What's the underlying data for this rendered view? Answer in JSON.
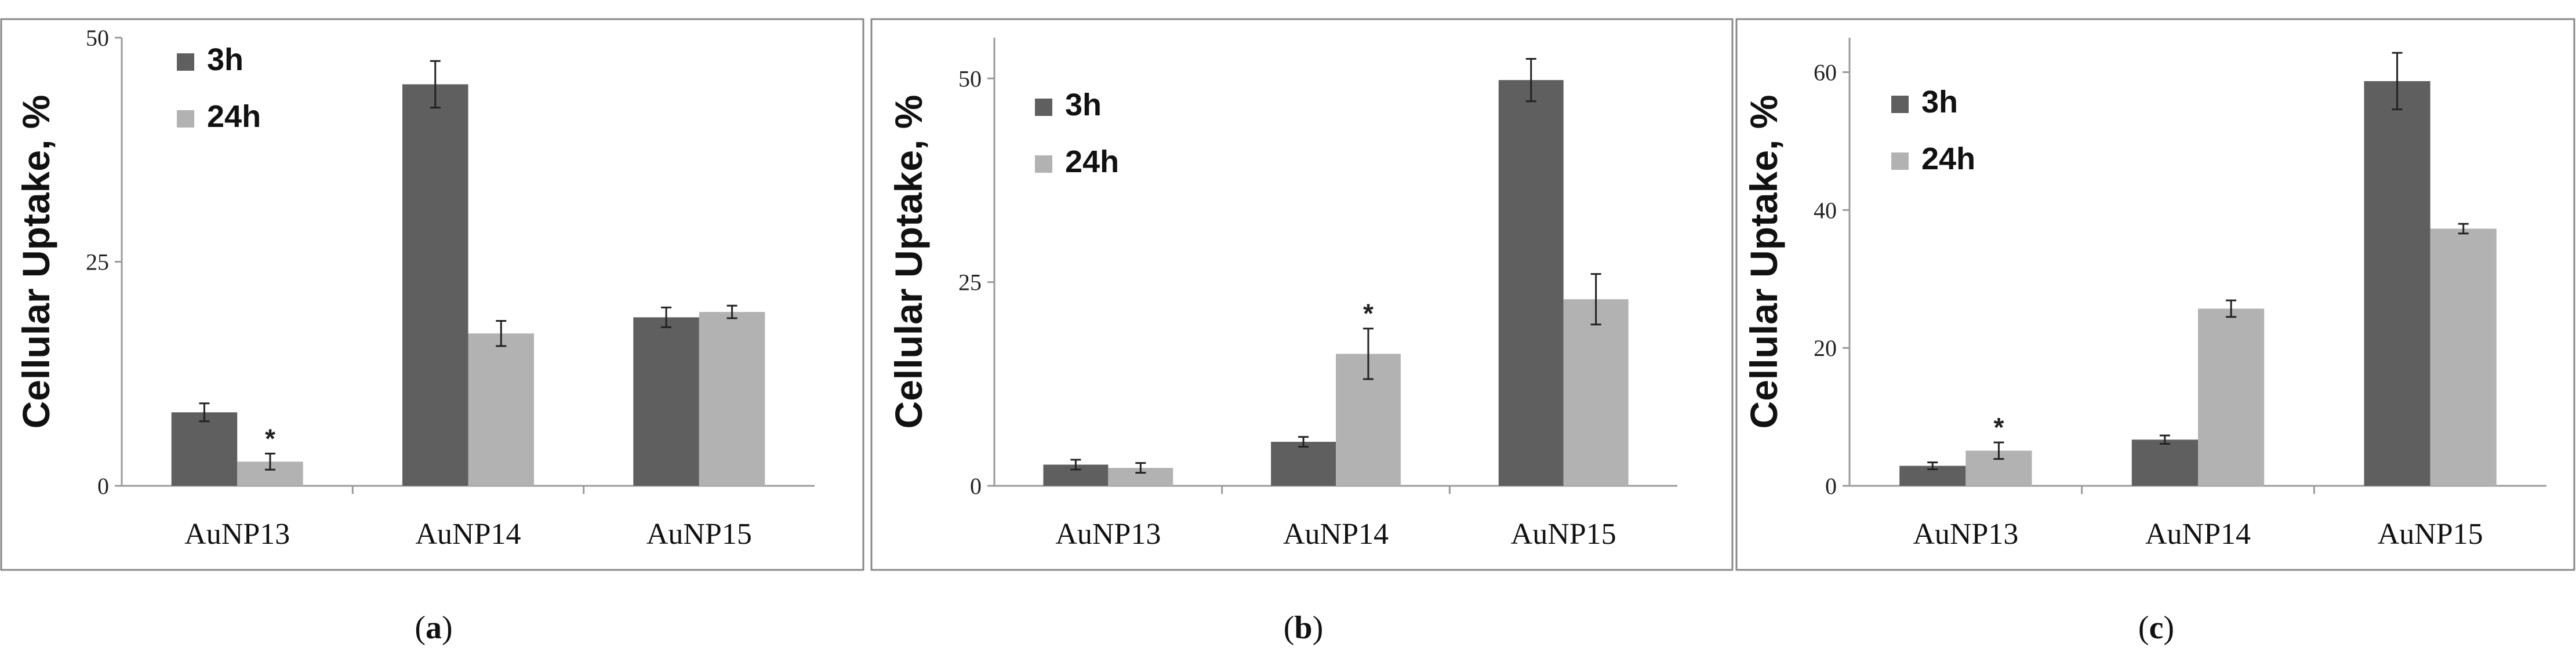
{
  "chart_data": [
    {
      "type": "bar",
      "panel": "(a)",
      "panel_letter": "a",
      "ylabel": "Cellular Uptake, %",
      "ylim": [
        0,
        50
      ],
      "yticks": [
        0,
        25,
        50
      ],
      "categories": [
        "AuNP13",
        "AuNP14",
        "AuNP15"
      ],
      "series": [
        {
          "name": "3h",
          "color": "#5f5f5f",
          "values": [
            8.2,
            44.8,
            18.8
          ],
          "errors": [
            1.0,
            2.6,
            1.1
          ]
        },
        {
          "name": "24h",
          "color": "#b2b2b2",
          "values": [
            2.7,
            17.0,
            19.4
          ],
          "errors": [
            0.9,
            1.4,
            0.7
          ]
        }
      ],
      "annotations": [
        {
          "series": 1,
          "category": 0,
          "text": "*"
        }
      ]
    },
    {
      "type": "bar",
      "panel": "(b)",
      "panel_letter": "b",
      "ylabel": "Cellular Uptake, %",
      "ylim": [
        0,
        55
      ],
      "yticks": [
        0,
        25,
        50
      ],
      "categories": [
        "AuNP13",
        "AuNP14",
        "AuNP15"
      ],
      "series": [
        {
          "name": "3h",
          "color": "#5f5f5f",
          "values": [
            2.6,
            5.4,
            49.8
          ],
          "errors": [
            0.6,
            0.6,
            2.6
          ]
        },
        {
          "name": "24h",
          "color": "#b2b2b2",
          "values": [
            2.2,
            16.2,
            22.9
          ],
          "errors": [
            0.6,
            3.1,
            3.1
          ]
        }
      ],
      "annotations": [
        {
          "series": 1,
          "category": 1,
          "text": "*"
        }
      ]
    },
    {
      "type": "bar",
      "panel": "(c)",
      "panel_letter": "c",
      "ylabel": "Cellular Uptake, %",
      "ylim": [
        0,
        65
      ],
      "yticks": [
        0,
        20,
        40,
        60
      ],
      "categories": [
        "AuNP13",
        "AuNP14",
        "AuNP15"
      ],
      "series": [
        {
          "name": "3h",
          "color": "#5f5f5f",
          "values": [
            2.9,
            6.7,
            58.7
          ],
          "errors": [
            0.5,
            0.6,
            4.1
          ]
        },
        {
          "name": "24h",
          "color": "#b2b2b2",
          "values": [
            5.1,
            25.7,
            37.3
          ],
          "errors": [
            1.2,
            1.2,
            0.7
          ]
        }
      ],
      "annotations": [
        {
          "series": 1,
          "category": 0,
          "text": "*"
        }
      ]
    }
  ]
}
